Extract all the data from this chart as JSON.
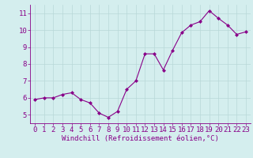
{
  "x": [
    0,
    1,
    2,
    3,
    4,
    5,
    6,
    7,
    8,
    9,
    10,
    11,
    12,
    13,
    14,
    15,
    16,
    17,
    18,
    19,
    20,
    21,
    22,
    23
  ],
  "y": [
    5.9,
    6.0,
    6.0,
    6.2,
    6.3,
    5.9,
    5.7,
    5.1,
    4.85,
    5.2,
    6.5,
    7.0,
    8.6,
    8.6,
    7.65,
    8.8,
    9.85,
    10.3,
    10.5,
    11.15,
    10.7,
    10.3,
    9.75,
    9.9
  ],
  "line_color": "#880088",
  "marker": "D",
  "marker_size": 2.0,
  "bg_color": "#d4eeee",
  "grid_color": "#b8d8d8",
  "xlabel": "Windchill (Refroidissement éolien,°C)",
  "xlim": [
    -0.5,
    23.5
  ],
  "ylim": [
    4.5,
    11.5
  ],
  "yticks": [
    5,
    6,
    7,
    8,
    9,
    10,
    11
  ],
  "xticks": [
    0,
    1,
    2,
    3,
    4,
    5,
    6,
    7,
    8,
    9,
    10,
    11,
    12,
    13,
    14,
    15,
    16,
    17,
    18,
    19,
    20,
    21,
    22,
    23
  ],
  "xlabel_fontsize": 6.5,
  "tick_fontsize": 6.5,
  "linewidth": 0.8
}
